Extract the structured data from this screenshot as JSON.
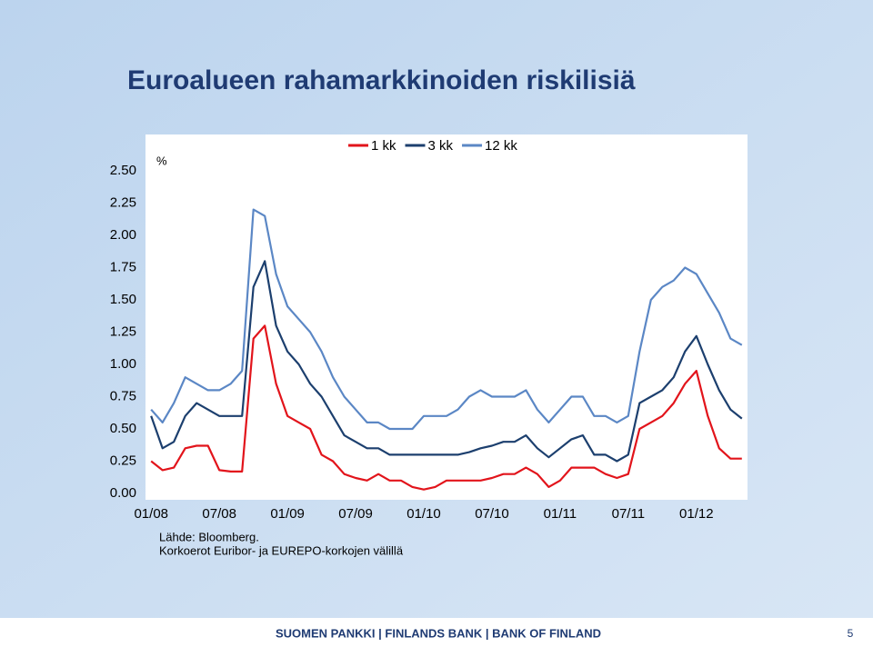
{
  "title": "Euroalueen rahamarkkinoiden riskilisiä",
  "chart_data": {
    "type": "line",
    "y_label": "%",
    "categories": [
      "01/08",
      null,
      null,
      null,
      null,
      null,
      "07/08",
      null,
      null,
      null,
      null,
      null,
      "01/09",
      null,
      null,
      null,
      null,
      null,
      "07/09",
      null,
      null,
      null,
      null,
      null,
      "01/10",
      null,
      null,
      null,
      null,
      null,
      "07/10",
      null,
      null,
      null,
      null,
      null,
      "01/11",
      null,
      null,
      null,
      null,
      null,
      "07/11",
      null,
      null,
      null,
      null,
      null,
      "01/12",
      null,
      null,
      null,
      null
    ],
    "ylim": [
      0,
      2.5
    ],
    "yticks": [
      {
        "value": 0,
        "label": "0.00"
      },
      {
        "value": 0.25,
        "label": "0.25"
      },
      {
        "value": 0.5,
        "label": "0.50"
      },
      {
        "value": 0.75,
        "label": "0.75"
      },
      {
        "value": 1,
        "label": "1.00"
      },
      {
        "value": 1.25,
        "label": "1.25"
      },
      {
        "value": 1.5,
        "label": "1.50"
      },
      {
        "value": 1.75,
        "label": "1.75"
      },
      {
        "value": 2,
        "label": "2.00"
      },
      {
        "value": 2.25,
        "label": "2.25"
      },
      {
        "value": 2.5,
        "label": "2.50"
      }
    ],
    "legend": "top",
    "series": [
      {
        "name": "1 kk",
        "color": "#e2141b",
        "values": [
          0.25,
          0.18,
          0.2,
          0.35,
          0.37,
          0.37,
          0.18,
          0.17,
          0.17,
          1.2,
          1.3,
          0.85,
          0.6,
          0.55,
          0.5,
          0.3,
          0.25,
          0.15,
          0.12,
          0.1,
          0.15,
          0.1,
          0.1,
          0.05,
          0.03,
          0.05,
          0.1,
          0.1,
          0.1,
          0.1,
          0.12,
          0.15,
          0.15,
          0.2,
          0.15,
          0.05,
          0.1,
          0.2,
          0.2,
          0.2,
          0.15,
          0.12,
          0.15,
          0.5,
          0.55,
          0.6,
          0.7,
          0.85,
          0.95,
          0.6,
          0.35,
          0.27,
          0.27
        ]
      },
      {
        "name": "3 kk",
        "color": "#1c3f6e",
        "values": [
          0.6,
          0.35,
          0.4,
          0.6,
          0.7,
          0.65,
          0.6,
          0.6,
          0.6,
          1.6,
          1.8,
          1.3,
          1.1,
          1.0,
          0.85,
          0.75,
          0.6,
          0.45,
          0.4,
          0.35,
          0.35,
          0.3,
          0.3,
          0.3,
          0.3,
          0.3,
          0.3,
          0.3,
          0.32,
          0.35,
          0.37,
          0.4,
          0.4,
          0.45,
          0.35,
          0.28,
          0.35,
          0.42,
          0.45,
          0.3,
          0.3,
          0.25,
          0.3,
          0.7,
          0.75,
          0.8,
          0.9,
          1.1,
          1.22,
          1.0,
          0.8,
          0.65,
          0.58
        ]
      },
      {
        "name": "12 kk",
        "color": "#5b87c5",
        "values": [
          0.65,
          0.55,
          0.7,
          0.9,
          0.85,
          0.8,
          0.8,
          0.85,
          0.95,
          2.2,
          2.15,
          1.7,
          1.45,
          1.35,
          1.25,
          1.1,
          0.9,
          0.75,
          0.65,
          0.55,
          0.55,
          0.5,
          0.5,
          0.5,
          0.6,
          0.6,
          0.6,
          0.65,
          0.75,
          0.8,
          0.75,
          0.75,
          0.75,
          0.8,
          0.65,
          0.55,
          0.65,
          0.75,
          0.75,
          0.6,
          0.6,
          0.55,
          0.6,
          1.1,
          1.5,
          1.6,
          1.65,
          1.75,
          1.7,
          1.55,
          1.4,
          1.2,
          1.15
        ]
      }
    ],
    "notes": [
      "Lähde: Bloomberg.",
      "Korkoerot Euribor- ja EUREPO-korkojen välillä"
    ]
  },
  "footer": {
    "bank": "SUOMEN PANKKI | FINLANDS BANK | BANK OF FINLAND",
    "page": "5"
  }
}
